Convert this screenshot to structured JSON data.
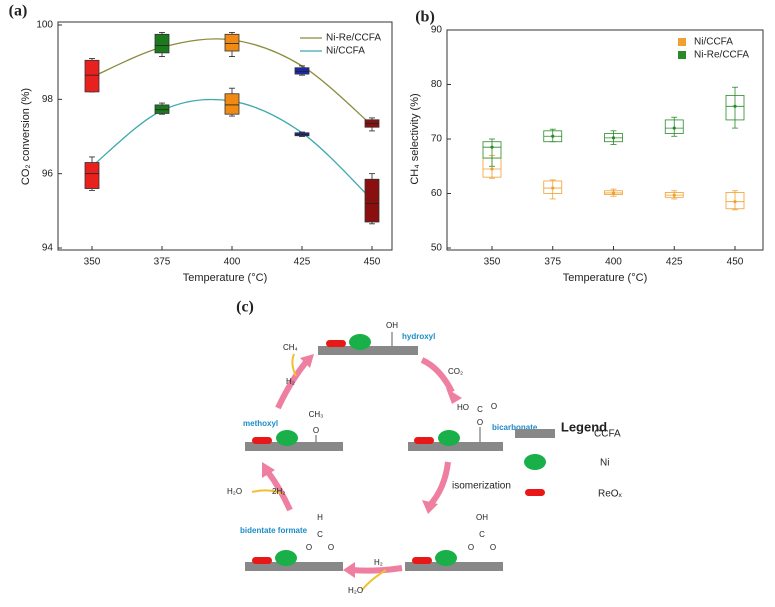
{
  "chart_data": [
    {
      "type": "box",
      "label": "(a)",
      "xlabel": "Temperature (°C)",
      "ylabel": "CO₂ conversion (%)",
      "categories": [
        "350",
        "375",
        "400",
        "425",
        "450"
      ],
      "ylim": [
        94,
        100
      ],
      "yticks": [
        94,
        96,
        98,
        100
      ],
      "legend": "upper right",
      "box_colors": [
        "#e8201e",
        "#1c7a1c",
        "#f08a12",
        "#1a28b0",
        "#8a1010"
      ],
      "series": [
        {
          "name": "Ni-Re/CCFA",
          "color": "#8b8b3c",
          "values": [
            [
              98.2,
              98.2,
              98.65,
              99.05,
              99.1
            ],
            [
              99.15,
              99.25,
              99.45,
              99.75,
              99.8
            ],
            [
              99.15,
              99.3,
              99.5,
              99.75,
              99.8
            ],
            [
              98.65,
              98.68,
              98.75,
              98.85,
              98.9
            ],
            [
              97.15,
              97.25,
              97.35,
              97.45,
              97.5
            ]
          ],
          "line_values": [
            98.6,
            99.4,
            99.6,
            98.9,
            97.3
          ]
        },
        {
          "name": "Ni/CCFA",
          "color": "#3aa9ad",
          "values": [
            [
              95.55,
              95.6,
              96.0,
              96.3,
              96.45
            ],
            [
              97.6,
              97.62,
              97.72,
              97.85,
              97.9
            ],
            [
              97.55,
              97.6,
              97.85,
              98.15,
              98.3
            ],
            [
              97.0,
              97.02,
              97.05,
              97.1,
              97.12
            ],
            [
              94.65,
              94.7,
              95.2,
              95.85,
              96.0
            ]
          ],
          "line_values": [
            96.2,
            97.7,
            97.95,
            97.1,
            95.3
          ]
        }
      ]
    },
    {
      "type": "box",
      "label": "(b)",
      "xlabel": "Temperature (°C)",
      "ylabel": "CH₄ selectivity (%)",
      "categories": [
        "350",
        "375",
        "400",
        "425",
        "450"
      ],
      "ylim": [
        50,
        90
      ],
      "yticks": [
        50,
        60,
        70,
        80,
        90
      ],
      "legend": "upper right",
      "series": [
        {
          "name": "Ni/CCFA",
          "color": "#f0a030",
          "values": [
            [
              62.8,
              63,
              64.5,
              66.5,
              67
            ],
            [
              59,
              60,
              61,
              62.3,
              62.5
            ],
            [
              59.5,
              59.8,
              60.1,
              60.5,
              60.8
            ],
            [
              59,
              59.3,
              59.7,
              60.2,
              60.5
            ],
            [
              57,
              57.2,
              58.5,
              60.2,
              60.5
            ]
          ]
        },
        {
          "name": "Ni-Re/CCFA",
          "color": "#2a8a2a",
          "values": [
            [
              65,
              66.5,
              68.5,
              69.5,
              70
            ],
            [
              69.5,
              69.5,
              70.5,
              71.5,
              71.8
            ],
            [
              69,
              69.5,
              70.2,
              71,
              71.5
            ],
            [
              70.5,
              71,
              72,
              73.5,
              74
            ],
            [
              72,
              73.5,
              76,
              78,
              79.5
            ]
          ]
        }
      ]
    }
  ],
  "diagram": {
    "label": "(c)",
    "states": [
      {
        "name": "hydroxyl",
        "atoms": [
          "OH"
        ]
      },
      {
        "name": "bicarbonate",
        "atoms": [
          "HO",
          "C",
          "O",
          "O"
        ]
      },
      {
        "atoms": [
          "OH",
          "C",
          "O",
          "O"
        ]
      },
      {
        "name": "bidentate formate",
        "atoms": [
          "H",
          "C",
          "O",
          "O"
        ]
      },
      {
        "name": "methoxyl",
        "atoms": [
          "CH₃",
          "O"
        ]
      }
    ],
    "steps": [
      {
        "reactant": "CO₂"
      },
      {
        "label": "isomerization"
      },
      {
        "reactant": "H₂",
        "product": "H₂O"
      },
      {
        "reactant": "2H₂",
        "product": "H₂O"
      },
      {
        "reactant": "H₂",
        "product": "CH₄"
      }
    ],
    "legend": {
      "title": "Legend",
      "items": [
        "CCFA",
        "Ni",
        "ReOₓ"
      ]
    }
  }
}
